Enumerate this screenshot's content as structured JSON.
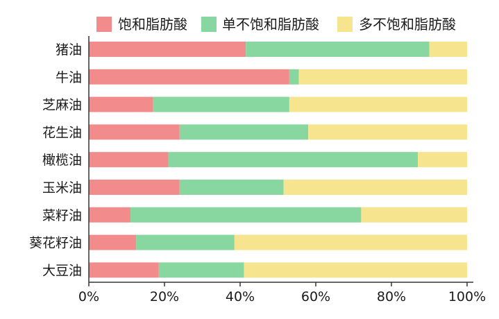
{
  "chart_data": {
    "type": "bar",
    "orientation": "horizontal",
    "stacked": true,
    "percent": true,
    "categories": [
      "猪油",
      "牛油",
      "芝麻油",
      "花生油",
      "橄榄油",
      "玉米油",
      "菜籽油",
      "葵花籽油",
      "大豆油"
    ],
    "series": [
      {
        "name": "饱和脂肪酸",
        "color": "#f28b8b",
        "values": [
          41.5,
          53,
          17,
          24,
          21,
          24,
          11,
          12.5,
          18.5
        ]
      },
      {
        "name": "单不饱和脂肪酸",
        "color": "#88d6a0",
        "values": [
          48.5,
          2.5,
          36,
          34,
          66,
          27.5,
          61,
          26,
          22.5
        ]
      },
      {
        "name": "多不饱和脂肪酸",
        "color": "#f6e58e",
        "values": [
          10,
          44.5,
          47,
          42,
          13,
          48.5,
          28,
          61.5,
          59
        ]
      }
    ],
    "xticks": [
      "0%",
      "20%",
      "40%",
      "60%",
      "80%",
      "100%"
    ],
    "xlim": [
      0,
      100
    ],
    "legend_position": "top",
    "grid": false,
    "title": "",
    "xlabel": "",
    "ylabel": ""
  }
}
